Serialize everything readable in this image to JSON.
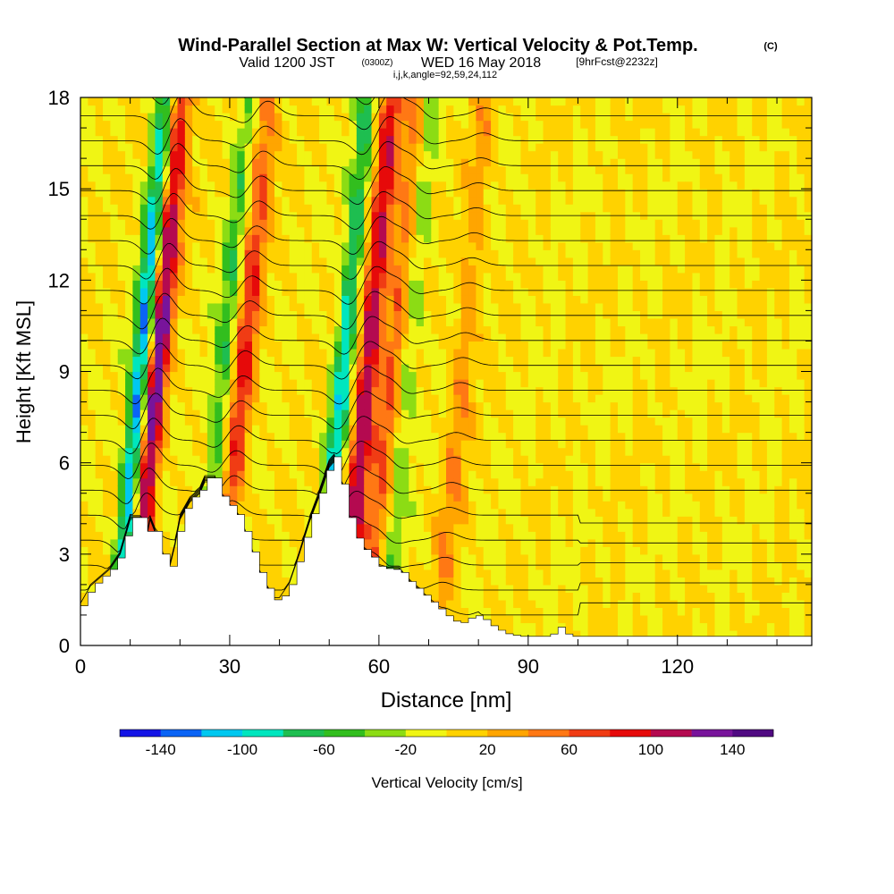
{
  "title": {
    "main": "Wind-Parallel Section at Max W: Vertical Velocity & Pot.Temp.",
    "copyright": "(C)",
    "valid_prefix": "Valid 1200 JST",
    "valid_utc": "(0300Z)",
    "valid_date": "WED 16 May 2018",
    "forecast": "[9hrFcst@2232z]",
    "coords": "i,j,k,angle=92,59,24,112"
  },
  "chart_data": {
    "type": "heatmap",
    "xlabel": "Distance [nm]",
    "ylabel": "Height [Kft MSL]",
    "xlim": [
      0,
      147
    ],
    "ylim": [
      0,
      18
    ],
    "x_ticks": [
      0,
      30,
      60,
      90,
      120
    ],
    "y_ticks": [
      0,
      3,
      6,
      9,
      12,
      15,
      18
    ],
    "colorbar": {
      "label": "Vertical Velocity [cm/s]",
      "tick_labels": [
        "-140",
        "-100",
        "-60",
        "-20",
        "20",
        "60",
        "100",
        "140"
      ],
      "tick_values": [
        -140,
        -100,
        -60,
        -20,
        20,
        60,
        100,
        140
      ],
      "range": [
        -160,
        160
      ],
      "colors": [
        "#1414e6",
        "#0a64f5",
        "#00c8f0",
        "#00e6be",
        "#1ebe50",
        "#32be1e",
        "#8cdc14",
        "#f0f514",
        "#ffd200",
        "#ffa500",
        "#ff7814",
        "#f03c14",
        "#e60a0a",
        "#b40a50",
        "#78149b",
        "#500a82"
      ]
    },
    "terrain_kft": [
      [
        0,
        1.3
      ],
      [
        2,
        1.9
      ],
      [
        4,
        2.2
      ],
      [
        6,
        2.5
      ],
      [
        8,
        3.0
      ],
      [
        9,
        3.6
      ],
      [
        10,
        4.2
      ],
      [
        12,
        4.2
      ],
      [
        13,
        3.3
      ],
      [
        14,
        4.2
      ],
      [
        16,
        3.3
      ],
      [
        17,
        2.7
      ],
      [
        18,
        2.6
      ],
      [
        19,
        3.3
      ],
      [
        20,
        4.2
      ],
      [
        22,
        4.8
      ],
      [
        24,
        5.1
      ],
      [
        25,
        5.5
      ],
      [
        27,
        5.5
      ],
      [
        28,
        5.0
      ],
      [
        30,
        4.6
      ],
      [
        32,
        4.2
      ],
      [
        34,
        3.3
      ],
      [
        36,
        2.4
      ],
      [
        38,
        1.7
      ],
      [
        39,
        1.5
      ],
      [
        40,
        1.5
      ],
      [
        42,
        2.0
      ],
      [
        44,
        3.0
      ],
      [
        46,
        4.1
      ],
      [
        48,
        5.0
      ],
      [
        50,
        6.0
      ],
      [
        51,
        6.2
      ],
      [
        53,
        5.0
      ],
      [
        54,
        4.2
      ],
      [
        56,
        3.3
      ],
      [
        58,
        3.0
      ],
      [
        60,
        2.6
      ],
      [
        62,
        2.5
      ],
      [
        64,
        2.5
      ],
      [
        66,
        2.1
      ],
      [
        68,
        1.8
      ],
      [
        70,
        1.5
      ],
      [
        72,
        1.2
      ],
      [
        74,
        0.9
      ],
      [
        76,
        0.7
      ],
      [
        78,
        0.9
      ],
      [
        80,
        1.0
      ],
      [
        82,
        0.7
      ],
      [
        85,
        0.4
      ],
      [
        88,
        0.3
      ],
      [
        94,
        0.3
      ],
      [
        96,
        0.6
      ],
      [
        98,
        0.3
      ],
      [
        147,
        0.3
      ]
    ],
    "updrafts": [
      {
        "x": 12.5,
        "w": 140
      },
      {
        "x": 30.0,
        "w": 80
      },
      {
        "x": 55.0,
        "w": 120
      },
      {
        "x": 60.0,
        "w": 60
      },
      {
        "x": 74.0,
        "w": 40
      }
    ],
    "downdrafts": [
      {
        "x": 9.5,
        "w": -140
      },
      {
        "x": 26.0,
        "w": -60
      },
      {
        "x": 50.0,
        "w": -100
      },
      {
        "x": 63.0,
        "w": -40
      }
    ],
    "theta_contour_count": 22
  }
}
